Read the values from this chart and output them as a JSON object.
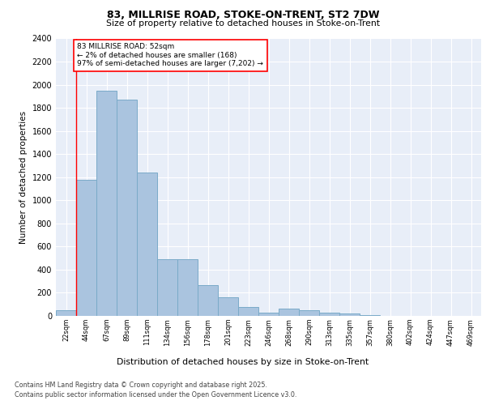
{
  "title1": "83, MILLRISE ROAD, STOKE-ON-TRENT, ST2 7DW",
  "title2": "Size of property relative to detached houses in Stoke-on-Trent",
  "xlabel": "Distribution of detached houses by size in Stoke-on-Trent",
  "ylabel": "Number of detached properties",
  "bin_labels": [
    "22sqm",
    "44sqm",
    "67sqm",
    "89sqm",
    "111sqm",
    "134sqm",
    "156sqm",
    "178sqm",
    "201sqm",
    "223sqm",
    "246sqm",
    "268sqm",
    "290sqm",
    "313sqm",
    "335sqm",
    "357sqm",
    "380sqm",
    "402sqm",
    "424sqm",
    "447sqm",
    "469sqm"
  ],
  "bar_values": [
    50,
    1180,
    1950,
    1870,
    1240,
    490,
    490,
    265,
    160,
    75,
    25,
    60,
    50,
    30,
    20,
    5,
    0,
    0,
    0,
    0,
    0
  ],
  "bar_color": "#aac4df",
  "bar_edge_color": "#7aaac8",
  "property_line_x": 0.5,
  "annotation_title": "83 MILLRISE ROAD: 52sqm",
  "annotation_line1": "← 2% of detached houses are smaller (168)",
  "annotation_line2": "97% of semi-detached houses are larger (7,202) →",
  "annotation_box_color": "#cc0000",
  "ylim": [
    0,
    2400
  ],
  "yticks": [
    0,
    200,
    400,
    600,
    800,
    1000,
    1200,
    1400,
    1600,
    1800,
    2000,
    2200,
    2400
  ],
  "footnote1": "Contains HM Land Registry data © Crown copyright and database right 2025.",
  "footnote2": "Contains public sector information licensed under the Open Government Licence v3.0.",
  "bg_color": "#e8eef8"
}
